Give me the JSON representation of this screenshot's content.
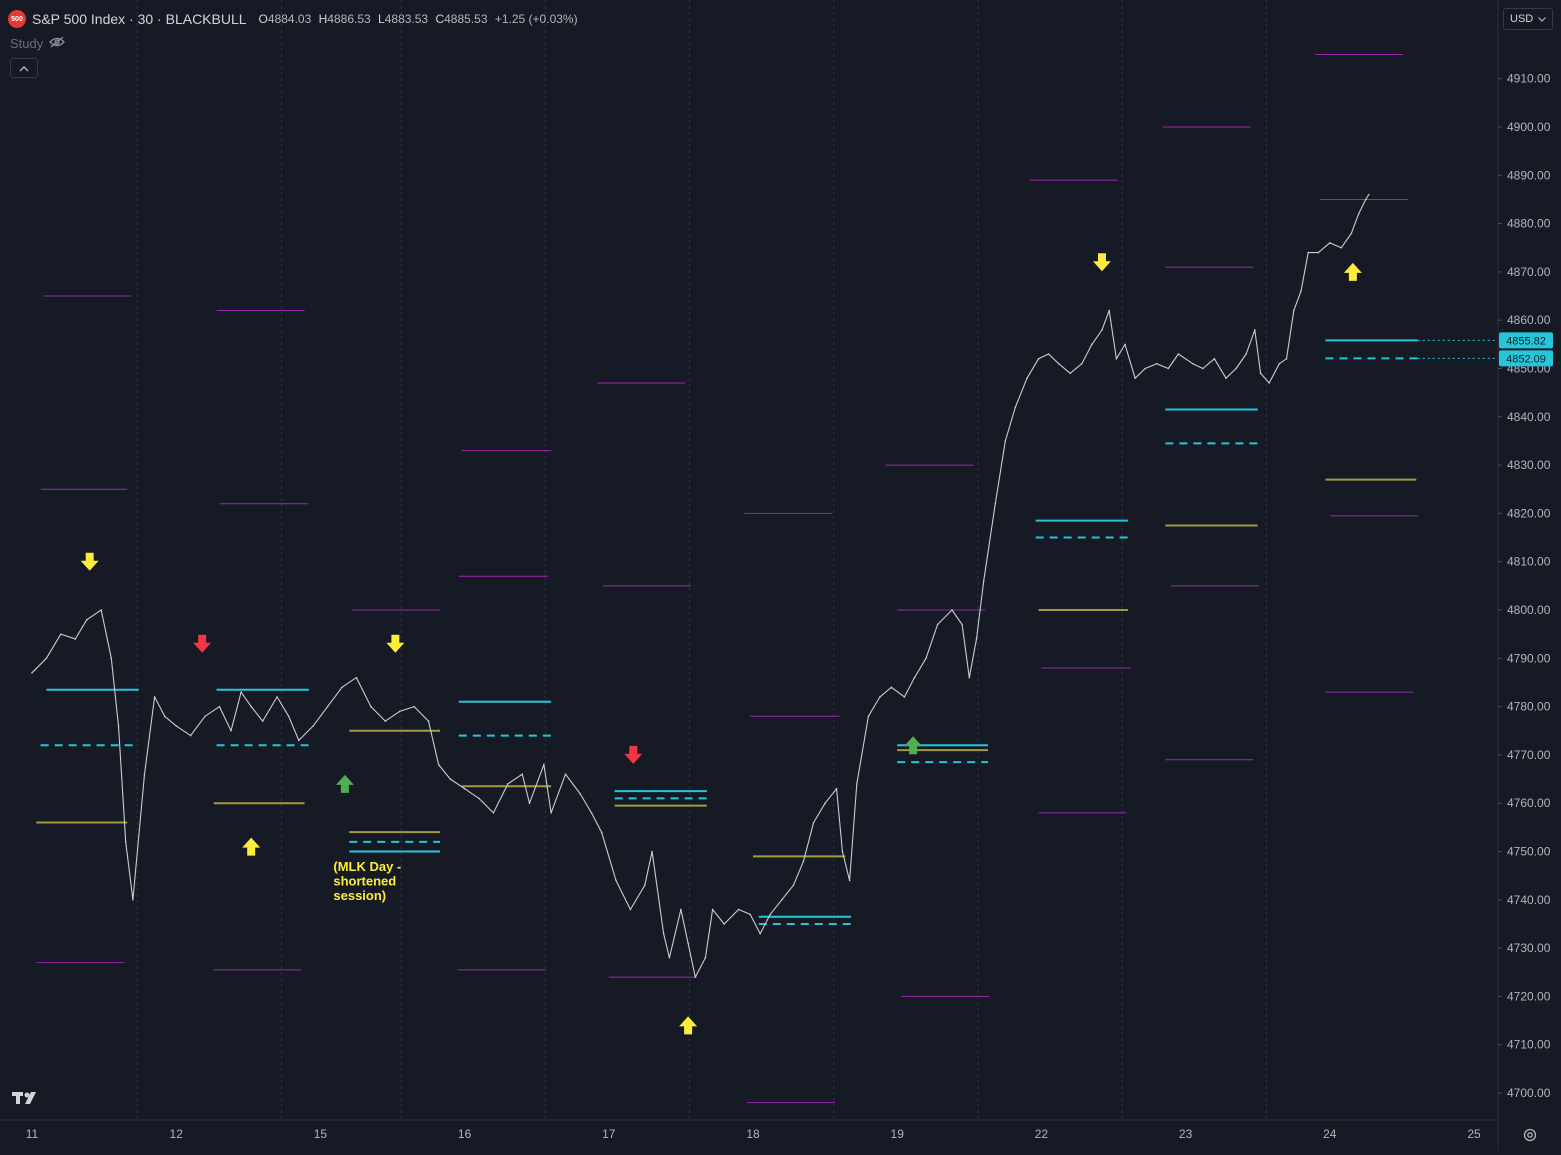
{
  "header": {
    "badge": "500",
    "title": "S&P 500 Index · 30 · BLACKBULL",
    "ohlc": [
      {
        "key": "O",
        "value": "4884.03"
      },
      {
        "key": "H",
        "value": "4886.53"
      },
      {
        "key": "L",
        "value": "4883.53"
      },
      {
        "key": "C",
        "value": "4885.53"
      }
    ],
    "change": "+1.25 (+0.03%)",
    "study_label": "Study",
    "collapse_icon": "chevron-up-icon"
  },
  "currency": {
    "label": "USD",
    "icon": "chevron-down-icon"
  },
  "logo": "TV",
  "colors": {
    "background": "#161a25",
    "price": "#c9ccd3",
    "cyan": "#26c6da",
    "magenta": "#9c27b0",
    "olive": "#a29a3c",
    "yellow": "#ffeb3b",
    "red": "#f23645",
    "green": "#4caf50"
  },
  "chart_data": {
    "type": "line",
    "title": "",
    "xlabel": "",
    "ylabel": "",
    "ylim": [
      4692,
      4918
    ],
    "x_ticks": [
      "11",
      "12",
      "15",
      "16",
      "17",
      "18",
      "19",
      "22",
      "23",
      "24",
      "25"
    ],
    "y_ticks": [
      4700,
      4710,
      4720,
      4730,
      4740,
      4750,
      4760,
      4770,
      4780,
      4790,
      4800,
      4810,
      4820,
      4830,
      4840,
      4850,
      4860,
      4870,
      4880,
      4890,
      4900,
      4910
    ],
    "grid": "vertical session separators only",
    "price_labels": [
      {
        "value": 4855.82,
        "text": "4855.82"
      },
      {
        "value": 4852.09,
        "text": "4852.09"
      }
    ],
    "series": [
      {
        "points": [
          [
            0,
            4787
          ],
          [
            0.1,
            4790
          ],
          [
            0.2,
            4795
          ],
          [
            0.3,
            4794
          ],
          [
            0.38,
            4798
          ],
          [
            0.48,
            4800
          ],
          [
            0.55,
            4790
          ],
          [
            0.6,
            4776
          ],
          [
            0.65,
            4752
          ],
          [
            0.7,
            4740
          ],
          [
            0.78,
            4766
          ],
          [
            0.85,
            4782
          ],
          [
            0.92,
            4778
          ],
          [
            1.0,
            4776
          ],
          [
            1.1,
            4774
          ],
          [
            1.2,
            4778
          ],
          [
            1.3,
            4780
          ],
          [
            1.38,
            4775
          ],
          [
            1.45,
            4783
          ],
          [
            1.52,
            4780
          ],
          [
            1.6,
            4777
          ],
          [
            1.7,
            4782
          ],
          [
            1.78,
            4778
          ],
          [
            1.85,
            4773
          ],
          [
            1.95,
            4776
          ],
          [
            2.05,
            4780
          ],
          [
            2.15,
            4784
          ],
          [
            2.25,
            4786
          ],
          [
            2.35,
            4780
          ],
          [
            2.45,
            4777
          ],
          [
            2.55,
            4779
          ],
          [
            2.65,
            4780
          ],
          [
            2.75,
            4777
          ],
          [
            2.82,
            4768
          ],
          [
            2.9,
            4765
          ],
          [
            3.0,
            4763
          ],
          [
            3.1,
            4761
          ],
          [
            3.2,
            4758
          ],
          [
            3.3,
            4764
          ],
          [
            3.4,
            4766
          ],
          [
            3.45,
            4760
          ],
          [
            3.55,
            4768
          ],
          [
            3.6,
            4758
          ],
          [
            3.7,
            4766
          ],
          [
            3.8,
            4762
          ],
          [
            3.88,
            4758
          ],
          [
            3.95,
            4754
          ],
          [
            4.05,
            4744
          ],
          [
            4.15,
            4738
          ],
          [
            4.25,
            4743
          ],
          [
            4.3,
            4750
          ],
          [
            4.38,
            4733
          ],
          [
            4.42,
            4728
          ],
          [
            4.5,
            4738
          ],
          [
            4.55,
            4731
          ],
          [
            4.6,
            4724
          ],
          [
            4.67,
            4728
          ],
          [
            4.72,
            4738
          ],
          [
            4.8,
            4735
          ],
          [
            4.9,
            4738
          ],
          [
            4.98,
            4737
          ],
          [
            5.05,
            4733
          ],
          [
            5.12,
            4737
          ],
          [
            5.2,
            4740
          ],
          [
            5.28,
            4743
          ],
          [
            5.35,
            4748
          ],
          [
            5.42,
            4756
          ],
          [
            5.5,
            4760
          ],
          [
            5.58,
            4763
          ],
          [
            5.62,
            4750
          ],
          [
            5.67,
            4744
          ],
          [
            5.72,
            4764
          ],
          [
            5.8,
            4778
          ],
          [
            5.88,
            4782
          ],
          [
            5.96,
            4784
          ],
          [
            6.05,
            4782
          ],
          [
            6.12,
            4786
          ],
          [
            6.2,
            4790
          ],
          [
            6.28,
            4797
          ],
          [
            6.38,
            4800
          ],
          [
            6.45,
            4797
          ],
          [
            6.5,
            4786
          ],
          [
            6.55,
            4794
          ],
          [
            6.6,
            4806
          ],
          [
            6.68,
            4822
          ],
          [
            6.75,
            4835
          ],
          [
            6.82,
            4842
          ],
          [
            6.9,
            4848
          ],
          [
            6.98,
            4852
          ],
          [
            7.05,
            4853
          ],
          [
            7.12,
            4851
          ],
          [
            7.2,
            4849
          ],
          [
            7.28,
            4851
          ],
          [
            7.35,
            4855
          ],
          [
            7.42,
            4858
          ],
          [
            7.47,
            4862
          ],
          [
            7.52,
            4852
          ],
          [
            7.58,
            4855
          ],
          [
            7.65,
            4848
          ],
          [
            7.72,
            4850
          ],
          [
            7.8,
            4851
          ],
          [
            7.88,
            4850
          ],
          [
            7.95,
            4853
          ],
          [
            8.05,
            4851
          ],
          [
            8.12,
            4850
          ],
          [
            8.2,
            4852
          ],
          [
            8.28,
            4848
          ],
          [
            8.35,
            4850
          ],
          [
            8.42,
            4853
          ],
          [
            8.48,
            4858
          ],
          [
            8.52,
            4849
          ],
          [
            8.58,
            4847
          ],
          [
            8.65,
            4851
          ],
          [
            8.7,
            4852
          ],
          [
            8.75,
            4862
          ],
          [
            8.8,
            4866
          ],
          [
            8.85,
            4874
          ],
          [
            8.92,
            4874
          ],
          [
            9.0,
            4876
          ],
          [
            9.08,
            4875
          ],
          [
            9.15,
            4878
          ],
          [
            9.2,
            4882
          ],
          [
            9.25,
            4885
          ],
          [
            9.27,
            4886
          ]
        ]
      }
    ],
    "levels": [
      {
        "color": "magenta",
        "style": "solid",
        "x": [
          0.08,
          0.69
        ],
        "y": 4865
      },
      {
        "color": "magenta",
        "style": "solid",
        "x": [
          0.06,
          0.66
        ],
        "y": 4825
      },
      {
        "color": "cyan",
        "style": "solid",
        "x": [
          0.1,
          0.74
        ],
        "y": 4783.5
      },
      {
        "color": "cyan",
        "style": "dashed",
        "x": [
          0.06,
          0.7
        ],
        "y": 4772
      },
      {
        "color": "olive",
        "style": "solid",
        "x": [
          0.03,
          0.66
        ],
        "y": 4756
      },
      {
        "color": "magenta",
        "style": "solid",
        "x": [
          0.03,
          0.64
        ],
        "y": 4727
      },
      {
        "color": "magenta",
        "style": "solid",
        "x": [
          1.28,
          1.89
        ],
        "y": 4862
      },
      {
        "color": "magenta",
        "style": "solid",
        "x": [
          1.3,
          1.91
        ],
        "y": 4822
      },
      {
        "color": "cyan",
        "style": "solid",
        "x": [
          1.28,
          1.92
        ],
        "y": 4783.5
      },
      {
        "color": "cyan",
        "style": "dashed",
        "x": [
          1.28,
          1.92
        ],
        "y": 4772
      },
      {
        "color": "olive",
        "style": "solid",
        "x": [
          1.26,
          1.89
        ],
        "y": 4760
      },
      {
        "color": "magenta",
        "style": "solid",
        "x": [
          1.26,
          1.87
        ],
        "y": 4725.5
      },
      {
        "color": "magenta",
        "style": "solid",
        "x": [
          2.22,
          2.83
        ],
        "y": 4800
      },
      {
        "color": "olive",
        "style": "solid",
        "x": [
          2.2,
          2.83
        ],
        "y": 4775
      },
      {
        "color": "olive",
        "style": "solid",
        "x": [
          2.2,
          2.83
        ],
        "y": 4754
      },
      {
        "color": "cyan",
        "style": "dashed",
        "x": [
          2.2,
          2.83
        ],
        "y": 4752
      },
      {
        "color": "cyan",
        "style": "solid",
        "x": [
          2.2,
          2.83
        ],
        "y": 4750
      },
      {
        "color": "magenta",
        "style": "solid",
        "x": [
          2.98,
          3.6
        ],
        "y": 4833
      },
      {
        "color": "magenta",
        "style": "solid",
        "x": [
          2.96,
          3.58
        ],
        "y": 4807
      },
      {
        "color": "cyan",
        "style": "solid",
        "x": [
          2.96,
          3.6
        ],
        "y": 4781
      },
      {
        "color": "cyan",
        "style": "dashed",
        "x": [
          2.96,
          3.6
        ],
        "y": 4774
      },
      {
        "color": "olive",
        "style": "solid",
        "x": [
          2.98,
          3.6
        ],
        "y": 4763.5
      },
      {
        "color": "magenta",
        "style": "solid",
        "x": [
          2.95,
          3.56
        ],
        "y": 4725.5
      },
      {
        "color": "magenta",
        "style": "solid",
        "x": [
          3.92,
          4.53
        ],
        "y": 4847
      },
      {
        "color": "magenta",
        "style": "solid",
        "x": [
          3.96,
          4.57
        ],
        "y": 4805
      },
      {
        "color": "cyan",
        "style": "solid",
        "x": [
          4.04,
          4.68
        ],
        "y": 4762.5
      },
      {
        "color": "cyan",
        "style": "dashed",
        "x": [
          4.04,
          4.68
        ],
        "y": 4761
      },
      {
        "color": "olive",
        "style": "solid",
        "x": [
          4.04,
          4.68
        ],
        "y": 4759.5
      },
      {
        "color": "magenta",
        "style": "solid",
        "x": [
          4.0,
          4.61
        ],
        "y": 4724
      },
      {
        "color": "magenta",
        "style": "solid",
        "x": [
          4.94,
          5.55
        ],
        "y": 4820
      },
      {
        "color": "magenta",
        "style": "solid",
        "x": [
          4.98,
          5.6
        ],
        "y": 4778
      },
      {
        "color": "olive",
        "style": "solid",
        "x": [
          5.0,
          5.64
        ],
        "y": 4749
      },
      {
        "color": "cyan",
        "style": "solid",
        "x": [
          5.04,
          5.68
        ],
        "y": 4736.5
      },
      {
        "color": "cyan",
        "style": "dashed",
        "x": [
          5.04,
          5.68
        ],
        "y": 4735
      },
      {
        "color": "magenta",
        "style": "solid",
        "x": [
          4.96,
          5.57
        ],
        "y": 4698
      },
      {
        "color": "magenta",
        "style": "solid",
        "x": [
          5.92,
          6.53
        ],
        "y": 4830
      },
      {
        "color": "magenta",
        "style": "solid",
        "x": [
          6.0,
          6.61
        ],
        "y": 4800
      },
      {
        "color": "cyan",
        "style": "solid",
        "x": [
          6.0,
          6.63
        ],
        "y": 4772
      },
      {
        "color": "olive",
        "style": "solid",
        "x": [
          6.0,
          6.63
        ],
        "y": 4771
      },
      {
        "color": "cyan",
        "style": "dashed",
        "x": [
          6.0,
          6.63
        ],
        "y": 4768.5
      },
      {
        "color": "magenta",
        "style": "solid",
        "x": [
          6.03,
          6.64
        ],
        "y": 4720
      },
      {
        "color": "magenta",
        "style": "solid",
        "x": [
          6.92,
          7.53
        ],
        "y": 4889
      },
      {
        "color": "cyan",
        "style": "solid",
        "x": [
          6.96,
          7.6
        ],
        "y": 4818.5
      },
      {
        "color": "cyan",
        "style": "dashed",
        "x": [
          6.96,
          7.6
        ],
        "y": 4815
      },
      {
        "color": "olive",
        "style": "solid",
        "x": [
          6.98,
          7.6
        ],
        "y": 4800
      },
      {
        "color": "magenta",
        "style": "solid",
        "x": [
          7.0,
          7.62
        ],
        "y": 4788
      },
      {
        "color": "magenta",
        "style": "solid",
        "x": [
          6.98,
          7.59
        ],
        "y": 4758
      },
      {
        "color": "magenta",
        "style": "solid",
        "x": [
          7.84,
          8.45
        ],
        "y": 4900
      },
      {
        "color": "magenta",
        "style": "solid",
        "x": [
          7.86,
          8.47
        ],
        "y": 4871
      },
      {
        "color": "cyan",
        "style": "solid",
        "x": [
          7.86,
          8.5
        ],
        "y": 4841.5
      },
      {
        "color": "cyan",
        "style": "dashed",
        "x": [
          7.86,
          8.5
        ],
        "y": 4834.5
      },
      {
        "color": "olive",
        "style": "solid",
        "x": [
          7.86,
          8.5
        ],
        "y": 4817.5
      },
      {
        "color": "magenta",
        "style": "solid",
        "x": [
          7.9,
          8.51
        ],
        "y": 4805
      },
      {
        "color": "magenta",
        "style": "solid",
        "x": [
          7.86,
          8.47
        ],
        "y": 4769
      },
      {
        "color": "magenta",
        "style": "solid",
        "x": [
          8.9,
          9.51
        ],
        "y": 4915
      },
      {
        "color": "magenta",
        "style": "solid",
        "x": [
          8.93,
          9.54
        ],
        "y": 4885
      },
      {
        "color": "cyan",
        "style": "solid",
        "x": [
          8.97,
          9.61
        ],
        "y": 4855.82
      },
      {
        "color": "cyan",
        "style": "dashed",
        "x": [
          8.97,
          9.61
        ],
        "y": 4852.09
      },
      {
        "color": "olive",
        "style": "solid",
        "x": [
          8.97,
          9.6
        ],
        "y": 4827
      },
      {
        "color": "magenta",
        "style": "solid",
        "x": [
          9.0,
          9.61
        ],
        "y": 4819.5
      },
      {
        "color": "magenta",
        "style": "solid",
        "x": [
          8.97,
          9.58
        ],
        "y": 4783
      }
    ],
    "markers": [
      {
        "x": 0.4,
        "y": 4810,
        "color": "yellow",
        "dir": "down"
      },
      {
        "x": 1.18,
        "y": 4793,
        "color": "red",
        "dir": "down"
      },
      {
        "x": 1.52,
        "y": 4751,
        "color": "yellow",
        "dir": "up"
      },
      {
        "x": 2.17,
        "y": 4764,
        "color": "green",
        "dir": "up"
      },
      {
        "x": 2.52,
        "y": 4793,
        "color": "yellow",
        "dir": "down"
      },
      {
        "x": 4.17,
        "y": 4770,
        "color": "red",
        "dir": "down"
      },
      {
        "x": 4.55,
        "y": 4714,
        "color": "yellow",
        "dir": "up"
      },
      {
        "x": 6.11,
        "y": 4772,
        "color": "green",
        "dir": "up"
      },
      {
        "x": 7.42,
        "y": 4872,
        "color": "yellow",
        "dir": "down"
      },
      {
        "x": 9.16,
        "y": 4870,
        "color": "yellow",
        "dir": "up"
      }
    ],
    "annotations": [
      {
        "text": "(MLK Day -",
        "x": 2.09,
        "y": 4746
      },
      {
        "text": "shortened",
        "x": 2.09,
        "y": 4743
      },
      {
        "text": "session)",
        "x": 2.09,
        "y": 4740
      }
    ]
  }
}
